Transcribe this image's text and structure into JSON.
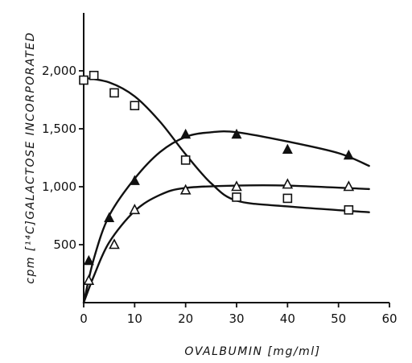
{
  "chart_data": {
    "type": "scatter",
    "title": "",
    "xlabel": "OVALBUMIN [mg/ml]",
    "ylabel": "cpm [¹⁴C]GALACTOSE INCORPORATED",
    "xlim": [
      0,
      60
    ],
    "ylim": [
      0,
      2500
    ],
    "x_ticks": [
      "0",
      "10",
      "20",
      "30",
      "40",
      "50",
      "60"
    ],
    "y_ticks": [
      "500",
      "1,000",
      "1,500",
      "2,000"
    ],
    "grid": false,
    "series": [
      {
        "marker": "open-square",
        "points": [
          [
            0,
            1920
          ],
          [
            2,
            1960
          ],
          [
            6,
            1810
          ],
          [
            10,
            1700
          ],
          [
            20,
            1230
          ],
          [
            30,
            910
          ],
          [
            40,
            900
          ],
          [
            52,
            800
          ]
        ],
        "curve": [
          [
            0,
            1940
          ],
          [
            5,
            1900
          ],
          [
            10,
            1780
          ],
          [
            15,
            1560
          ],
          [
            20,
            1280
          ],
          [
            25,
            1030
          ],
          [
            30,
            880
          ],
          [
            40,
            830
          ],
          [
            56,
            780
          ]
        ]
      },
      {
        "marker": "filled-triangle",
        "points": [
          [
            1,
            360
          ],
          [
            5,
            730
          ],
          [
            10,
            1050
          ],
          [
            20,
            1450
          ],
          [
            30,
            1450
          ],
          [
            40,
            1320
          ],
          [
            52,
            1270
          ]
        ],
        "curve": [
          [
            0,
            0
          ],
          [
            2,
            380
          ],
          [
            5,
            750
          ],
          [
            10,
            1070
          ],
          [
            15,
            1300
          ],
          [
            20,
            1430
          ],
          [
            25,
            1470
          ],
          [
            30,
            1470
          ],
          [
            40,
            1390
          ],
          [
            50,
            1290
          ],
          [
            56,
            1180
          ]
        ]
      },
      {
        "marker": "open-triangle",
        "points": [
          [
            1,
            190
          ],
          [
            6,
            500
          ],
          [
            10,
            800
          ],
          [
            20,
            970
          ],
          [
            30,
            1000
          ],
          [
            40,
            1020
          ],
          [
            52,
            1000
          ]
        ],
        "curve": [
          [
            0,
            0
          ],
          [
            2,
            230
          ],
          [
            5,
            520
          ],
          [
            10,
            790
          ],
          [
            15,
            930
          ],
          [
            20,
            990
          ],
          [
            30,
            1010
          ],
          [
            40,
            1010
          ],
          [
            56,
            980
          ]
        ]
      }
    ],
    "colors": {
      "ink": "#111111",
      "background": "#ffffff"
    }
  }
}
